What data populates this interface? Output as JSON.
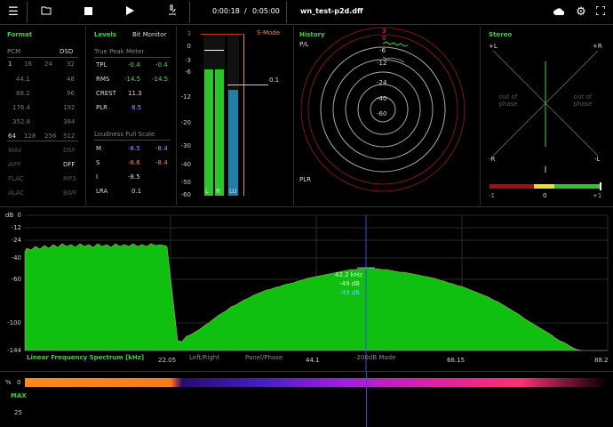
{
  "toolbar": {
    "time_elapsed": "0:00:18",
    "time_sep": "/",
    "time_total": "0:05:00",
    "filename": "wn_test-p2d.dff",
    "icons": [
      "menu-icon",
      "folder-icon",
      "stop-icon",
      "play-icon",
      "microscope-icon",
      "cloud-icon",
      "gear-icon",
      "fullscreen-icon"
    ]
  },
  "format": {
    "title": "Format",
    "pcm": "PCM",
    "dsd": "DSD",
    "bits": [
      "1",
      "16",
      "24",
      "32"
    ],
    "rates": [
      [
        "44.1",
        "48"
      ],
      [
        "88.2",
        "96"
      ],
      [
        "176.4",
        "192"
      ],
      [
        "352.8",
        "384"
      ]
    ],
    "dsd_rates": [
      "64",
      "128",
      "256",
      "512"
    ],
    "formats": [
      [
        "WAV",
        "DSF"
      ],
      [
        "AIFF",
        "DFF"
      ],
      [
        "FLAC",
        "MP3"
      ],
      [
        "ALAC",
        "BWF"
      ]
    ]
  },
  "levels": {
    "title": "Levels",
    "bit_monitor": "Bit Monitor",
    "true_peak_title": "True Peak Meter",
    "rows": [
      {
        "label": "TPL",
        "l": "-0.4",
        "r": "-0.4"
      },
      {
        "label": "RMS",
        "l": "-14.5",
        "r": "-14.5"
      },
      {
        "label": "CREST",
        "l": "11.3",
        "r": ""
      },
      {
        "label": "PLR",
        "l": "8.5",
        "r": ""
      }
    ],
    "loudness_title": "Loudness Full Scale",
    "loud_rows": [
      {
        "label": "M",
        "a": "-8.5",
        "b": "-8.4"
      },
      {
        "label": "S",
        "a": "-8.6",
        "b": "-8.4"
      },
      {
        "label": "I",
        "a": "-8.5",
        "b": ""
      },
      {
        "label": "LRA",
        "a": "0.1",
        "b": ""
      }
    ]
  },
  "meter": {
    "smode": "S-Mode",
    "scale": [
      "3",
      "0",
      "-3",
      "-6",
      "-12",
      "-20",
      "-30",
      "-40",
      "-50",
      "-60"
    ],
    "lu_value": "0.1",
    "labels": [
      "L",
      "R",
      "LU"
    ],
    "l_level": 0.79,
    "r_level": 0.79,
    "lu_level": 0.66
  },
  "history": {
    "title": "History",
    "pl": "P/L",
    "plr": "PLR",
    "rings": [
      "3",
      "0",
      "-6",
      "-12",
      "-24",
      "-40",
      "-60"
    ]
  },
  "stereo": {
    "title": "Stereo",
    "pl": "+L",
    "pr": "+R",
    "ml": "-R",
    "mr": "-L",
    "oop_left": "out of\nphase",
    "oop_right": "out of\nphase",
    "corr_scale": [
      "-1",
      "0",
      "+1"
    ]
  },
  "spectrum": {
    "db_label": "dB",
    "y_ticks": [
      "0",
      "-12",
      "-24",
      "-40",
      "-60",
      "-100",
      "-144"
    ],
    "x_ticks": [
      "22.05",
      "44.1",
      "66.15",
      "88.2"
    ],
    "title": "Linear Frequency Spectrum [kHz]",
    "tabs": [
      "Left/Right",
      "Panel/Phase",
      "-200dB Mode"
    ],
    "cursor_freq": "42.2 kHz",
    "cursor_db1": "-49 dB",
    "cursor_db2": "-49 dB"
  },
  "bottom": {
    "pct": "%",
    "zero": "0",
    "max": "MAX",
    "twentyfive": "25"
  }
}
